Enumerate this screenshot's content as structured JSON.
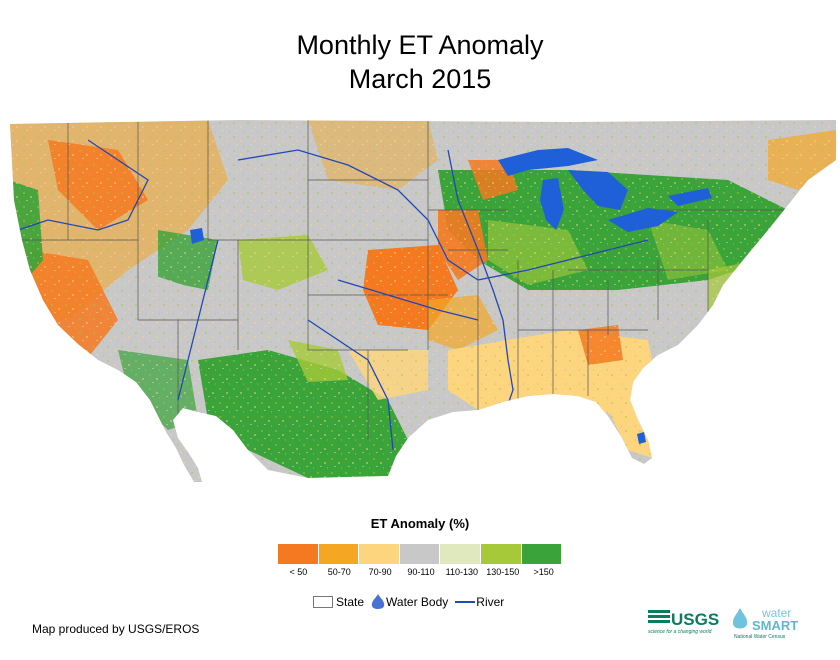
{
  "title_line1": "Monthly ET Anomaly",
  "title_line2": "March 2015",
  "legend": {
    "title": "ET Anomaly (%)",
    "classes": [
      {
        "label": "< 50",
        "color": "#f47920"
      },
      {
        "label": "50-70",
        "color": "#f5a623"
      },
      {
        "label": "70-90",
        "color": "#fdd57e"
      },
      {
        "label": "90-110",
        "color": "#c8c8c8"
      },
      {
        "label": "110-130",
        "color": "#dfe9bd"
      },
      {
        "label": "130-150",
        "color": "#a6c93a"
      },
      {
        "label": ">150",
        "color": "#3aa33a"
      }
    ]
  },
  "symbols": {
    "state": "State",
    "water_body": "Water Body",
    "river": "River",
    "water_color": "#1f5fd8",
    "river_color": "#2247b8"
  },
  "credit": "Map produced by USGS/EROS",
  "logos": {
    "usgs": "USGS",
    "usgs_tagline": "science for a changing world",
    "water_smart_1": "water",
    "water_smart_2": "SMART",
    "water_smart_tagline": "National Water Census"
  }
}
